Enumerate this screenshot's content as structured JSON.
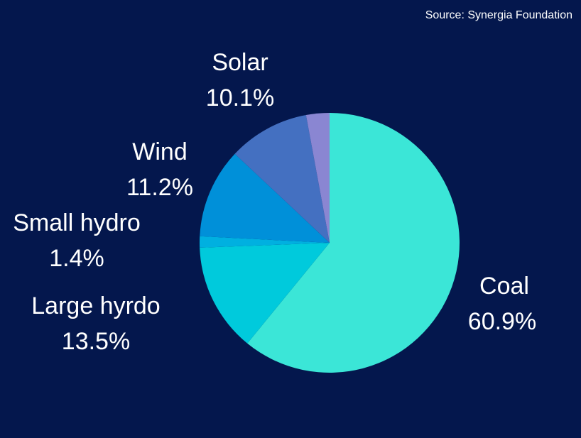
{
  "chart_data": {
    "type": "pie",
    "source": "Source: Synergia Foundation",
    "categories": [
      "Coal",
      "Large hyrdo",
      "Small hydro",
      "Wind",
      "Solar",
      null
    ],
    "values": [
      60.9,
      13.5,
      1.4,
      11.2,
      10.1,
      2.9
    ],
    "value_labels": [
      "60.9%",
      "13.5%",
      "1.4%",
      "11.2%",
      "10.1%",
      null
    ],
    "colors": [
      "#3be6d7",
      "#00cadc",
      "#00b0e0",
      "#0090d9",
      "#4470c1",
      "#8a86d2"
    ]
  }
}
